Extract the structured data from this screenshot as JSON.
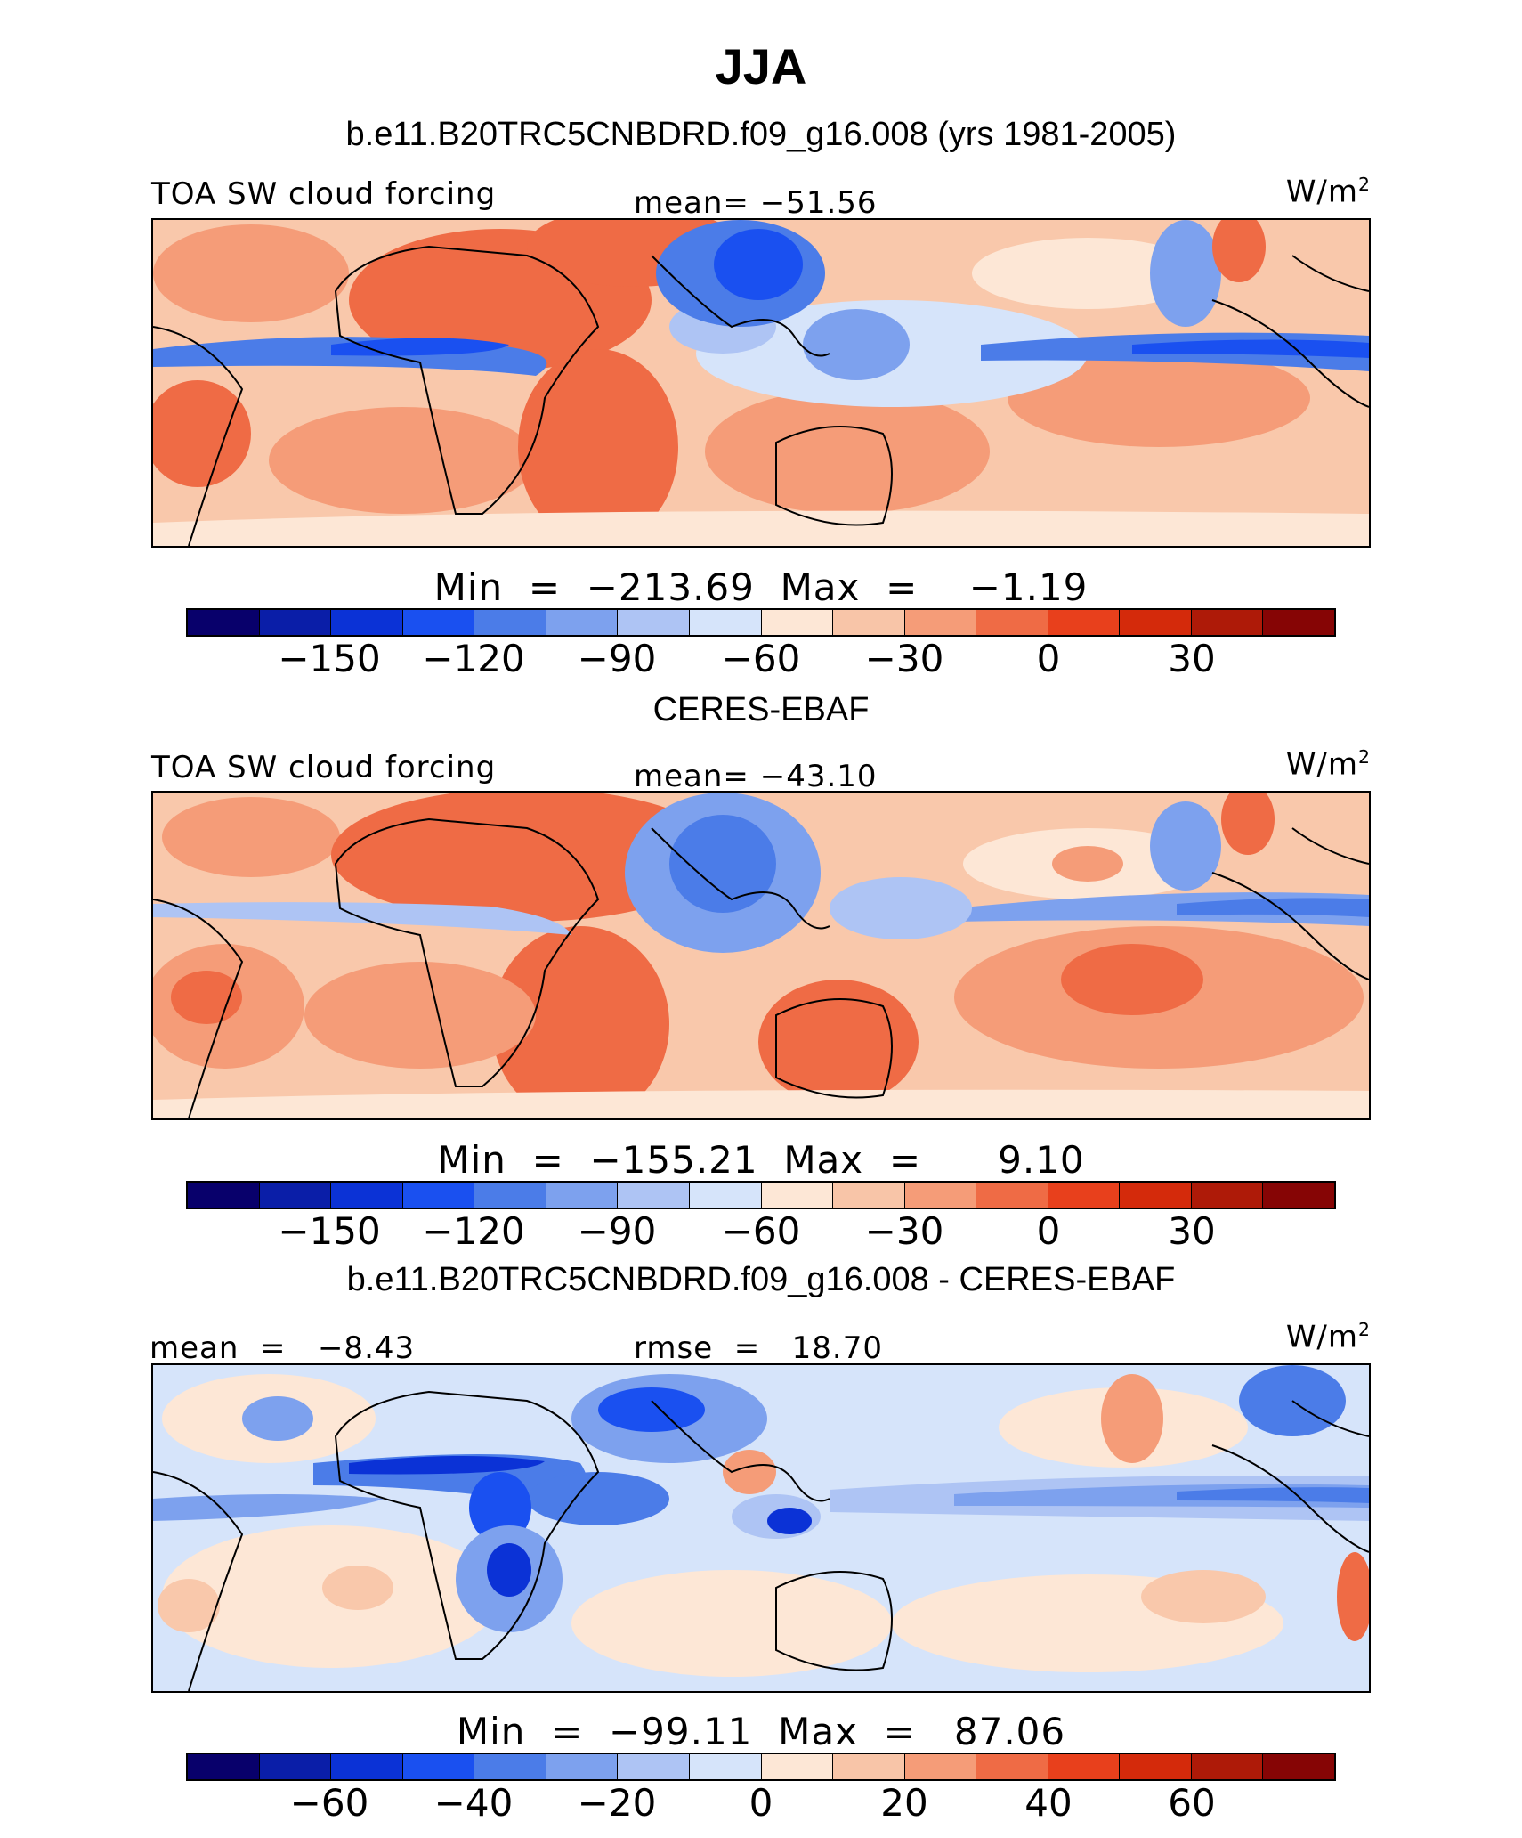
{
  "title": "JJA",
  "units": "W/m",
  "units_sup": "2",
  "panels": [
    {
      "case_title": "b.e11.B20TRC5CNBDRD.f09_g16.008 (yrs 1981-2005)",
      "left_label": "TOA SW cloud forcing",
      "center_label": "mean= −51.56",
      "minmax": "Min  =  −213.69  Max  =    −1.19",
      "colorbar_ticks": [
        "−150",
        "−120",
        "−90",
        "−60",
        "−30",
        "0",
        "30"
      ]
    },
    {
      "case_title": "CERES-EBAF",
      "left_label": "TOA SW cloud forcing",
      "center_label": "mean= −43.10",
      "minmax": "Min  =  −155.21  Max  =      9.10",
      "colorbar_ticks": [
        "−150",
        "−120",
        "−90",
        "−60",
        "−30",
        "0",
        "30"
      ]
    },
    {
      "case_title": "b.e11.B20TRC5CNBDRD.f09_g16.008 - CERES-EBAF",
      "left_label": "mean  =   −8.43",
      "center_label": "rmse  =   18.70",
      "minmax": "Min  =  −99.11  Max  =   87.06",
      "colorbar_ticks": [
        "−60",
        "−40",
        "−20",
        "0",
        "20",
        "40",
        "60"
      ]
    }
  ],
  "colorbar_colors": [
    "#08006b",
    "#0a1ea8",
    "#0b32d6",
    "#1a50f0",
    "#4b7ce8",
    "#7da1ee",
    "#aec4f4",
    "#d6e4fa",
    "#fde7d6",
    "#f8c5a8",
    "#f59c78",
    "#ef6b45",
    "#e8401c",
    "#d42a0b",
    "#ae1a08",
    "#860505"
  ]
}
